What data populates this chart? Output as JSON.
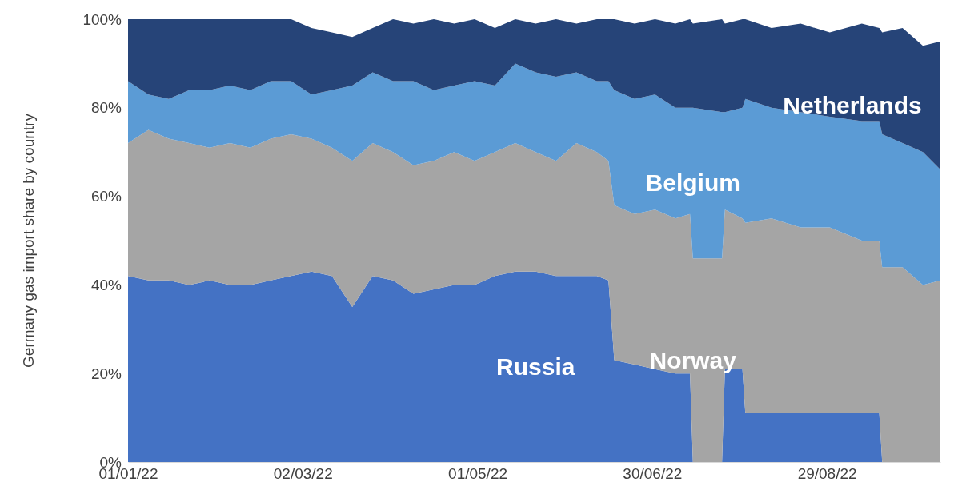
{
  "chart_data": {
    "type": "area",
    "stacked": true,
    "ylabel": "Germany gas import share by country",
    "x": [
      "2022-01-01",
      "2022-01-08",
      "2022-01-15",
      "2022-01-22",
      "2022-01-29",
      "2022-02-05",
      "2022-02-12",
      "2022-02-19",
      "2022-02-26",
      "2022-03-05",
      "2022-03-12",
      "2022-03-19",
      "2022-03-26",
      "2022-04-02",
      "2022-04-09",
      "2022-04-16",
      "2022-04-23",
      "2022-04-30",
      "2022-05-07",
      "2022-05-14",
      "2022-05-21",
      "2022-05-28",
      "2022-06-04",
      "2022-06-11",
      "2022-06-15",
      "2022-06-17",
      "2022-06-24",
      "2022-07-01",
      "2022-07-08",
      "2022-07-13",
      "2022-07-14",
      "2022-07-24",
      "2022-07-25",
      "2022-07-31",
      "2022-08-01",
      "2022-08-10",
      "2022-08-20",
      "2022-08-30",
      "2022-09-10",
      "2022-09-16",
      "2022-09-17",
      "2022-09-24",
      "2022-10-01",
      "2022-10-07"
    ],
    "series": [
      {
        "name": "Russia",
        "color": "#4472c4",
        "values": [
          42,
          41,
          41,
          40,
          41,
          40,
          40,
          41,
          42,
          43,
          42,
          35,
          42,
          41,
          38,
          39,
          40,
          40,
          42,
          43,
          43,
          42,
          42,
          42,
          41,
          23,
          22,
          21,
          20,
          20,
          0,
          0,
          21,
          21,
          11,
          11,
          11,
          11,
          11,
          11,
          0,
          0,
          0,
          0
        ]
      },
      {
        "name": "Norway",
        "color": "#a5a5a5",
        "values": [
          30,
          34,
          32,
          32,
          30,
          32,
          31,
          32,
          32,
          30,
          29,
          33,
          30,
          29,
          29,
          29,
          30,
          28,
          28,
          29,
          27,
          26,
          30,
          28,
          27,
          35,
          34,
          36,
          35,
          36,
          46,
          46,
          36,
          34,
          43,
          44,
          42,
          42,
          39,
          39,
          44,
          44,
          40,
          41
        ]
      },
      {
        "name": "Belgium",
        "color": "#5b9bd5",
        "values": [
          14,
          8,
          9,
          12,
          13,
          13,
          13,
          13,
          12,
          10,
          13,
          17,
          16,
          16,
          19,
          16,
          15,
          18,
          15,
          18,
          18,
          19,
          16,
          16,
          18,
          26,
          26,
          26,
          25,
          24,
          34,
          33,
          22,
          25,
          28,
          25,
          26,
          25,
          27,
          27,
          30,
          28,
          30,
          25
        ]
      },
      {
        "name": "Netherlands",
        "color": "#264478",
        "values": [
          14,
          17,
          18,
          16,
          16,
          15,
          16,
          14,
          14,
          15,
          13,
          11,
          10,
          14,
          13,
          16,
          14,
          14,
          13,
          10,
          11,
          13,
          11,
          14,
          14,
          16,
          17,
          17,
          19,
          20,
          19,
          21,
          20,
          20,
          18,
          18,
          20,
          19,
          22,
          21,
          23,
          26,
          24,
          29
        ]
      }
    ],
    "xlim": [
      "2022-01-01",
      "2022-10-07"
    ],
    "xticks": [
      {
        "value": "2022-01-01",
        "label": "01/01/22"
      },
      {
        "value": "2022-03-02",
        "label": "02/03/22"
      },
      {
        "value": "2022-05-01",
        "label": "01/05/22"
      },
      {
        "value": "2022-06-30",
        "label": "30/06/22"
      },
      {
        "value": "2022-08-29",
        "label": "29/08/22"
      }
    ],
    "ylim": [
      0,
      100
    ],
    "yticks": [
      {
        "value": 0,
        "label": "0%"
      },
      {
        "value": 20,
        "label": "20%"
      },
      {
        "value": 40,
        "label": "40%"
      },
      {
        "value": 60,
        "label": "60%"
      },
      {
        "value": 80,
        "label": "80%"
      },
      {
        "value": 100,
        "label": "100%"
      }
    ]
  }
}
